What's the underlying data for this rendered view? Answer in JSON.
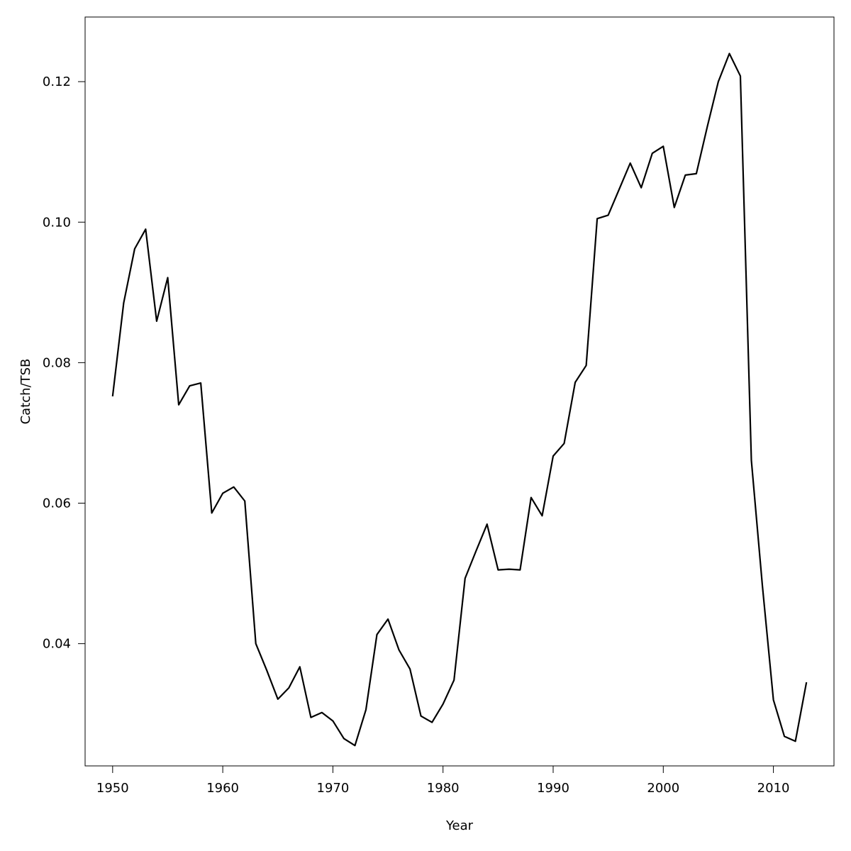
{
  "chart_data": {
    "type": "line",
    "title": "",
    "xlabel": "Year",
    "ylabel": "Catch/TSB",
    "xlim": [
      1947.5,
      2015.5
    ],
    "ylim": [
      0.0226,
      0.1292
    ],
    "x_ticks": [
      1950,
      1960,
      1970,
      1980,
      1990,
      2000,
      2010
    ],
    "x_tick_labels": [
      "1950",
      "1960",
      "1970",
      "1980",
      "1990",
      "2000",
      "2010"
    ],
    "y_ticks": [
      0.04,
      0.06,
      0.08,
      0.1,
      0.12
    ],
    "y_tick_labels": [
      "0.04",
      "0.06",
      "0.08",
      "0.10",
      "0.12"
    ],
    "grid": false,
    "line_color": "#000000",
    "series": [
      {
        "x": [
          1950,
          1951,
          1952,
          1953,
          1954,
          1955,
          1956,
          1957,
          1958,
          1959,
          1960,
          1961,
          1962,
          1963,
          1964,
          1965,
          1966,
          1967,
          1968,
          1969,
          1970,
          1971,
          1972,
          1973,
          1974,
          1975,
          1976,
          1977,
          1978,
          1979,
          1980,
          1981,
          1982,
          1983,
          1984,
          1985,
          1986,
          1987,
          1988,
          1989,
          1990,
          1991,
          1992,
          1993,
          1994,
          1995,
          1996,
          1997,
          1998,
          1999,
          2000,
          2001,
          2002,
          2003,
          2004,
          2005,
          2006,
          2007,
          2008,
          2009,
          2010,
          2011,
          2012,
          2013
        ],
        "values": [
          0.0752,
          0.0885,
          0.0962,
          0.099,
          0.0859,
          0.0921,
          0.074,
          0.0767,
          0.0771,
          0.0586,
          0.0614,
          0.0623,
          0.0603,
          0.04,
          0.0362,
          0.0321,
          0.0337,
          0.0367,
          0.0295,
          0.0302,
          0.029,
          0.0265,
          0.0255,
          0.0306,
          0.0413,
          0.0435,
          0.0391,
          0.0364,
          0.0297,
          0.0288,
          0.0314,
          0.0348,
          0.0493,
          0.0532,
          0.057,
          0.0505,
          0.0506,
          0.0505,
          0.0608,
          0.0582,
          0.0667,
          0.0685,
          0.0772,
          0.0796,
          0.1005,
          0.101,
          0.1047,
          0.1084,
          0.1049,
          0.1098,
          0.1108,
          0.1021,
          0.1067,
          0.1069,
          0.1136,
          0.12,
          0.124,
          0.1208,
          0.0661,
          0.0482,
          0.032,
          0.0268,
          0.0261,
          0.0345
        ]
      }
    ]
  }
}
